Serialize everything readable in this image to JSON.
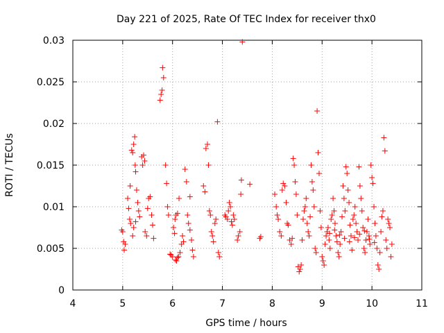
{
  "chart_data": {
    "type": "scatter",
    "title": "Day 221 of 2025, Rate Of TEC Index for receiver thx0",
    "xlabel": "GPS time / hours",
    "ylabel": "ROTI / TECUs",
    "xlim": [
      4,
      11
    ],
    "ylim": [
      0,
      0.03
    ],
    "grid": true,
    "x_ticks": [
      "4",
      "5",
      "6",
      "7",
      "8",
      "9",
      "10",
      "11"
    ],
    "y_ticks": [
      "0",
      "0.005",
      "0.01",
      "0.015",
      "0.02",
      "0.025",
      "0.03"
    ],
    "marker": "+",
    "series": [
      {
        "name": "ROTI",
        "color": "#ff0000",
        "points": [
          [
            4.98,
            0.0072
          ],
          [
            5.0,
            0.007
          ],
          [
            5.02,
            0.0058
          ],
          [
            5.03,
            0.0048
          ],
          [
            5.05,
            0.0055
          ],
          [
            5.1,
            0.011
          ],
          [
            5.12,
            0.0098
          ],
          [
            5.14,
            0.0085
          ],
          [
            5.16,
            0.008
          ],
          [
            5.15,
            0.0125
          ],
          [
            5.18,
            0.0168
          ],
          [
            5.2,
            0.0165
          ],
          [
            5.22,
            0.0175
          ],
          [
            5.24,
            0.0184
          ],
          [
            5.25,
            0.015
          ],
          [
            5.26,
            0.0142
          ],
          [
            5.28,
            0.012
          ],
          [
            5.3,
            0.0105
          ],
          [
            5.32,
            0.0095
          ],
          [
            5.34,
            0.0088
          ],
          [
            5.2,
            0.0065
          ],
          [
            5.22,
            0.0075
          ],
          [
            5.26,
            0.0082
          ],
          [
            5.38,
            0.016
          ],
          [
            5.4,
            0.015
          ],
          [
            5.42,
            0.0162
          ],
          [
            5.44,
            0.0155
          ],
          [
            5.45,
            0.007
          ],
          [
            5.48,
            0.0065
          ],
          [
            5.5,
            0.0098
          ],
          [
            5.52,
            0.011
          ],
          [
            5.55,
            0.0112
          ],
          [
            5.58,
            0.009
          ],
          [
            5.6,
            0.0078
          ],
          [
            5.62,
            0.0062
          ],
          [
            5.75,
            0.0228
          ],
          [
            5.77,
            0.0235
          ],
          [
            5.79,
            0.024
          ],
          [
            5.8,
            0.0267
          ],
          [
            5.82,
            0.0255
          ],
          [
            5.86,
            0.015
          ],
          [
            5.88,
            0.0128
          ],
          [
            5.9,
            0.01
          ],
          [
            5.92,
            0.009
          ],
          [
            5.95,
            0.0043
          ],
          [
            5.97,
            0.0042
          ],
          [
            6.0,
            0.004
          ],
          [
            6.02,
            0.0075
          ],
          [
            6.04,
            0.0068
          ],
          [
            6.06,
            0.0036
          ],
          [
            6.08,
            0.0035
          ],
          [
            6.1,
            0.0039
          ],
          [
            6.12,
            0.004
          ],
          [
            6.15,
            0.0045
          ],
          [
            6.18,
            0.0055
          ],
          [
            6.2,
            0.0065
          ],
          [
            6.22,
            0.0058
          ],
          [
            6.25,
            0.0145
          ],
          [
            6.28,
            0.013
          ],
          [
            6.3,
            0.009
          ],
          [
            6.32,
            0.008
          ],
          [
            6.35,
            0.0072
          ],
          [
            6.38,
            0.006
          ],
          [
            6.4,
            0.0048
          ],
          [
            6.42,
            0.004
          ],
          [
            6.05,
            0.0085
          ],
          [
            6.07,
            0.009
          ],
          [
            6.1,
            0.0092
          ],
          [
            6.13,
            0.011
          ],
          [
            6.35,
            0.0112
          ],
          [
            6.62,
            0.0125
          ],
          [
            6.65,
            0.0118
          ],
          [
            6.67,
            0.017
          ],
          [
            6.7,
            0.0175
          ],
          [
            6.72,
            0.015
          ],
          [
            6.74,
            0.0095
          ],
          [
            6.76,
            0.009
          ],
          [
            6.78,
            0.007
          ],
          [
            6.8,
            0.0065
          ],
          [
            6.82,
            0.0058
          ],
          [
            6.85,
            0.008
          ],
          [
            6.87,
            0.0085
          ],
          [
            6.9,
            0.0202
          ],
          [
            6.92,
            0.0045
          ],
          [
            6.94,
            0.004
          ],
          [
            7.05,
            0.009
          ],
          [
            7.07,
            0.0088
          ],
          [
            7.1,
            0.0085
          ],
          [
            7.12,
            0.0095
          ],
          [
            7.14,
            0.0105
          ],
          [
            7.16,
            0.01
          ],
          [
            7.18,
            0.0082
          ],
          [
            7.2,
            0.0078
          ],
          [
            7.22,
            0.009
          ],
          [
            7.24,
            0.0085
          ],
          [
            7.3,
            0.006
          ],
          [
            7.32,
            0.0065
          ],
          [
            7.35,
            0.007
          ],
          [
            7.37,
            0.0115
          ],
          [
            7.4,
            0.0298
          ],
          [
            7.38,
            0.0132
          ],
          [
            7.55,
            0.0127
          ],
          [
            7.75,
            0.0062
          ],
          [
            7.77,
            0.0064
          ],
          [
            8.05,
            0.0115
          ],
          [
            8.08,
            0.01
          ],
          [
            8.1,
            0.009
          ],
          [
            8.12,
            0.0085
          ],
          [
            8.15,
            0.007
          ],
          [
            8.18,
            0.0065
          ],
          [
            8.2,
            0.012
          ],
          [
            8.22,
            0.0128
          ],
          [
            8.25,
            0.0125
          ],
          [
            8.28,
            0.0105
          ],
          [
            8.3,
            0.008
          ],
          [
            8.32,
            0.0078
          ],
          [
            8.35,
            0.006
          ],
          [
            8.38,
            0.0055
          ],
          [
            8.4,
            0.0062
          ],
          [
            8.42,
            0.0158
          ],
          [
            8.44,
            0.015
          ],
          [
            8.46,
            0.013
          ],
          [
            8.48,
            0.0115
          ],
          [
            8.5,
            0.009
          ],
          [
            8.52,
            0.0028
          ],
          [
            8.54,
            0.0022
          ],
          [
            8.56,
            0.0025
          ],
          [
            8.58,
            0.003
          ],
          [
            8.6,
            0.006
          ],
          [
            8.62,
            0.0085
          ],
          [
            8.64,
            0.0095
          ],
          [
            8.66,
            0.01
          ],
          [
            8.68,
            0.011
          ],
          [
            8.7,
            0.008
          ],
          [
            8.72,
            0.007
          ],
          [
            8.74,
            0.0065
          ],
          [
            8.76,
            0.0088
          ],
          [
            8.78,
            0.015
          ],
          [
            8.8,
            0.013
          ],
          [
            8.82,
            0.012
          ],
          [
            8.84,
            0.01
          ],
          [
            8.86,
            0.005
          ],
          [
            8.88,
            0.0045
          ],
          [
            8.9,
            0.0215
          ],
          [
            8.92,
            0.0165
          ],
          [
            8.94,
            0.014
          ],
          [
            8.96,
            0.0095
          ],
          [
            8.98,
            0.0075
          ],
          [
            9.0,
            0.004
          ],
          [
            9.02,
            0.0035
          ],
          [
            9.04,
            0.003
          ],
          [
            9.06,
            0.0055
          ],
          [
            9.08,
            0.0065
          ],
          [
            9.1,
            0.007
          ],
          [
            9.12,
            0.0075
          ],
          [
            9.14,
            0.006
          ],
          [
            9.16,
            0.005
          ],
          [
            9.18,
            0.0085
          ],
          [
            9.2,
            0.009
          ],
          [
            9.22,
            0.011
          ],
          [
            9.24,
            0.0095
          ],
          [
            9.26,
            0.008
          ],
          [
            9.28,
            0.0065
          ],
          [
            9.3,
            0.0058
          ],
          [
            9.32,
            0.0045
          ],
          [
            9.34,
            0.004
          ],
          [
            9.36,
            0.0055
          ],
          [
            9.38,
            0.007
          ],
          [
            9.4,
            0.0088
          ],
          [
            9.42,
            0.0125
          ],
          [
            9.44,
            0.011
          ],
          [
            9.46,
            0.0095
          ],
          [
            9.48,
            0.0148
          ],
          [
            9.5,
            0.014
          ],
          [
            9.52,
            0.012
          ],
          [
            9.54,
            0.0105
          ],
          [
            9.56,
            0.0078
          ],
          [
            9.58,
            0.0065
          ],
          [
            9.6,
            0.0048
          ],
          [
            9.62,
            0.0085
          ],
          [
            9.64,
            0.009
          ],
          [
            9.66,
            0.01
          ],
          [
            9.68,
            0.008
          ],
          [
            9.7,
            0.007
          ],
          [
            9.72,
            0.006
          ],
          [
            9.74,
            0.0148
          ],
          [
            9.76,
            0.0125
          ],
          [
            9.78,
            0.011
          ],
          [
            9.8,
            0.0095
          ],
          [
            9.82,
            0.0075
          ],
          [
            9.84,
            0.005
          ],
          [
            9.86,
            0.0045
          ],
          [
            9.88,
            0.006
          ],
          [
            9.9,
            0.007
          ],
          [
            9.92,
            0.0085
          ],
          [
            9.94,
            0.0065
          ],
          [
            9.96,
            0.0055
          ],
          [
            9.98,
            0.015
          ],
          [
            10.0,
            0.0135
          ],
          [
            10.02,
            0.0128
          ],
          [
            10.04,
            0.01
          ],
          [
            10.06,
            0.008
          ],
          [
            10.08,
            0.0065
          ],
          [
            10.1,
            0.005
          ],
          [
            10.12,
            0.003
          ],
          [
            10.14,
            0.0025
          ],
          [
            10.16,
            0.0045
          ],
          [
            10.18,
            0.007
          ],
          [
            10.2,
            0.0088
          ],
          [
            10.22,
            0.0095
          ],
          [
            10.24,
            0.0183
          ],
          [
            10.26,
            0.0167
          ],
          [
            10.28,
            0.006
          ],
          [
            10.3,
            0.005
          ],
          [
            10.32,
            0.0085
          ],
          [
            10.34,
            0.008
          ],
          [
            10.36,
            0.0075
          ],
          [
            10.38,
            0.004
          ],
          [
            10.4,
            0.0055
          ],
          [
            9.15,
            0.0068
          ],
          [
            9.25,
            0.0072
          ],
          [
            9.35,
            0.0066
          ],
          [
            9.45,
            0.0062
          ],
          [
            9.55,
            0.0058
          ],
          [
            9.65,
            0.0063
          ],
          [
            9.75,
            0.0067
          ],
          [
            9.85,
            0.0071
          ],
          [
            9.95,
            0.0061
          ],
          [
            10.05,
            0.0057
          ]
        ]
      }
    ]
  }
}
